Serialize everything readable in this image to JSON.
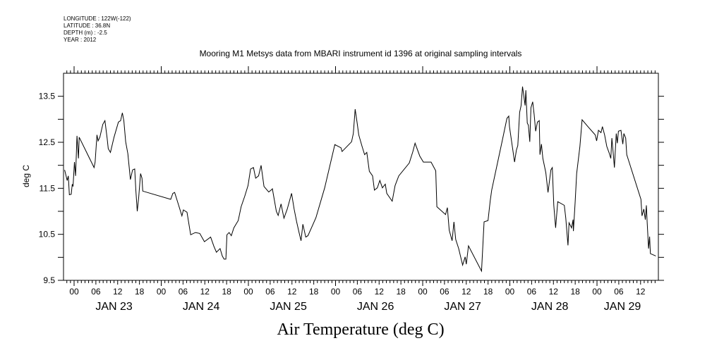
{
  "header": {
    "longitude": "LONGITUDE : 122W(-122)",
    "latitude": "LATITUDE : 36.8N",
    "depth": "DEPTH (m) : -2.5",
    "year": "YEAR : 2012"
  },
  "chart_data": {
    "type": "line",
    "title": "Mooring M1 Metsys data from MBARI instrument id 1396 at original sampling intervals",
    "xlabel": "Air Temperature (deg C)",
    "ylabel": "deg C",
    "x_units": "hours since 2012-01-23 00:00",
    "xlim": [
      -3,
      161
    ],
    "ylim": [
      9.5,
      14.0
    ],
    "grid": false,
    "line_color": "#000000",
    "y_ticks": [
      9.5,
      10.0,
      10.5,
      11.0,
      11.5,
      12.0,
      12.5,
      13.0,
      13.5
    ],
    "y_tick_labels": [
      {
        "value": 9.5,
        "label": "9.5"
      },
      {
        "value": 10.5,
        "label": "10.5"
      },
      {
        "value": 11.5,
        "label": "11.5"
      },
      {
        "value": 12.5,
        "label": "12.5"
      },
      {
        "value": 13.5,
        "label": "13.5"
      }
    ],
    "x_tick_labels": [
      {
        "hour": 0,
        "label": "00"
      },
      {
        "hour": 6,
        "label": "06"
      },
      {
        "hour": 12,
        "label": "12"
      },
      {
        "hour": 18,
        "label": "18"
      },
      {
        "hour": 24,
        "label": "00"
      },
      {
        "hour": 30,
        "label": "06"
      },
      {
        "hour": 36,
        "label": "12"
      },
      {
        "hour": 42,
        "label": "18"
      },
      {
        "hour": 48,
        "label": "00"
      },
      {
        "hour": 54,
        "label": "06"
      },
      {
        "hour": 60,
        "label": "12"
      },
      {
        "hour": 66,
        "label": "18"
      },
      {
        "hour": 72,
        "label": "00"
      },
      {
        "hour": 78,
        "label": "06"
      },
      {
        "hour": 84,
        "label": "12"
      },
      {
        "hour": 90,
        "label": "18"
      },
      {
        "hour": 96,
        "label": "00"
      },
      {
        "hour": 102,
        "label": "06"
      },
      {
        "hour": 108,
        "label": "12"
      },
      {
        "hour": 114,
        "label": "18"
      },
      {
        "hour": 120,
        "label": "00"
      },
      {
        "hour": 126,
        "label": "06"
      },
      {
        "hour": 132,
        "label": "12"
      },
      {
        "hour": 138,
        "label": "18"
      },
      {
        "hour": 144,
        "label": "00"
      },
      {
        "hour": 150,
        "label": "06"
      },
      {
        "hour": 156,
        "label": "12"
      }
    ],
    "date_labels": [
      {
        "hour": 11,
        "label": "JAN 23"
      },
      {
        "hour": 35,
        "label": "JAN 24"
      },
      {
        "hour": 59,
        "label": "JAN 25"
      },
      {
        "hour": 83,
        "label": "JAN 26"
      },
      {
        "hour": 107,
        "label": "JAN 27"
      },
      {
        "hour": 131,
        "label": "JAN 28"
      },
      {
        "hour": 151,
        "label": "JAN 29"
      }
    ],
    "x": [
      -2.6,
      -1.9,
      -1.6,
      -1.3,
      -0.8,
      -0.5,
      -0.3,
      0.1,
      0.4,
      0.8,
      1.2,
      1.4,
      5.5,
      5.8,
      6.3,
      6.6,
      7.1,
      7.9,
      8.5,
      9.1,
      9.4,
      10.0,
      11.0,
      12.2,
      12.8,
      13.3,
      13.7,
      14.2,
      14.8,
      15.5,
      16.1,
      16.7,
      17.0,
      17.4,
      17.8,
      18.3,
      18.7,
      18.9,
      26.6,
      27.2,
      27.7,
      28.8,
      29.7,
      30.1,
      31.1,
      32.1,
      33.4,
      34.6,
      35.9,
      37.6,
      38.5,
      39.2,
      40.2,
      40.8,
      41.3,
      41.8,
      42.1,
      42.7,
      43.3,
      44.0,
      45.2,
      46.0,
      47.0,
      47.9,
      48.6,
      49.4,
      50.0,
      50.8,
      51.5,
      52.3,
      53.6,
      54.4,
      54.6,
      55.7,
      56.2,
      57.0,
      57.8,
      58.7,
      59.9,
      60.6,
      61.3,
      62.0,
      62.5,
      63.0,
      63.8,
      64.4,
      65.7,
      66.6,
      69.0,
      71.8,
      73.5,
      73.8,
      76.4,
      76.9,
      77.4,
      78.0,
      78.4,
      79.3,
      80.0,
      80.6,
      81.3,
      82.2,
      82.7,
      83.5,
      84.2,
      84.9,
      85.7,
      86.1,
      87.6,
      88.4,
      89.4,
      92.3,
      93.3,
      93.9,
      95.2,
      96.2,
      98.3,
      99.6,
      99.9,
      102.3,
      102.8,
      103.3,
      104.1,
      104.6,
      105.1,
      105.9,
      107.0,
      107.7,
      108.0,
      108.6,
      112.2,
      112.9,
      114.0,
      114.6,
      115.0,
      117.9,
      119.2,
      119.7,
      119.9,
      121.3,
      121.8,
      122.2,
      122.7,
      123.1,
      123.5,
      123.8,
      124.2,
      124.4,
      124.8,
      125.1,
      125.5,
      125.8,
      126.3,
      126.7,
      127.1,
      127.6,
      128.1,
      128.3,
      128.7,
      129.1,
      129.9,
      130.5,
      131.3,
      131.7,
      132.1,
      132.6,
      133.2,
      135.0,
      135.4,
      136.0,
      136.3,
      137.0,
      137.4,
      137.5,
      138.0,
      138.4,
      139.3,
      139.9,
      141.5,
      143.5,
      143.9,
      144.4,
      145.1,
      145.5,
      146.1,
      146.7,
      147.3,
      147.8,
      148.1,
      148.5,
      148.8,
      149.3,
      149.6,
      149.9,
      150.6,
      151.1,
      151.4,
      151.9,
      152.2,
      156.1,
      156.4,
      156.9,
      157.3,
      157.6,
      157.8,
      158.2,
      158.5,
      158.7,
      160.2
    ],
    "values": [
      11.9,
      11.67,
      11.77,
      11.36,
      11.37,
      11.59,
      11.54,
      12.07,
      11.77,
      12.64,
      12.15,
      12.61,
      11.95,
      12.07,
      12.66,
      12.53,
      12.61,
      12.89,
      12.97,
      12.59,
      12.36,
      12.28,
      12.61,
      12.94,
      12.97,
      13.14,
      12.97,
      12.51,
      12.25,
      11.69,
      11.9,
      11.92,
      11.46,
      11.0,
      11.31,
      11.82,
      11.72,
      11.44,
      11.26,
      11.39,
      11.41,
      11.13,
      10.9,
      11.03,
      10.98,
      10.49,
      10.54,
      10.52,
      10.34,
      10.44,
      10.24,
      10.11,
      10.19,
      10.03,
      9.96,
      9.96,
      10.49,
      10.54,
      10.47,
      10.64,
      10.8,
      11.1,
      11.33,
      11.56,
      11.92,
      11.95,
      11.72,
      11.77,
      12.0,
      11.54,
      11.42,
      11.47,
      11.49,
      11.0,
      10.91,
      11.16,
      10.85,
      11.05,
      11.39,
      11.05,
      10.77,
      10.52,
      10.36,
      10.72,
      10.44,
      10.47,
      10.7,
      10.86,
      11.51,
      12.45,
      12.38,
      12.3,
      12.51,
      12.69,
      13.22,
      12.89,
      12.66,
      12.41,
      12.23,
      12.28,
      11.87,
      11.77,
      11.46,
      11.51,
      11.67,
      11.51,
      11.59,
      11.39,
      11.22,
      11.56,
      11.77,
      12.05,
      12.3,
      12.48,
      12.2,
      12.07,
      12.07,
      11.88,
      11.1,
      10.93,
      11.08,
      10.59,
      10.36,
      10.77,
      10.39,
      10.19,
      9.83,
      10.01,
      9.85,
      10.25,
      9.7,
      10.77,
      10.8,
      11.23,
      11.46,
      12.53,
      13.02,
      13.07,
      12.84,
      12.07,
      12.33,
      12.43,
      13.15,
      13.3,
      13.71,
      13.53,
      13.3,
      13.63,
      12.92,
      12.87,
      12.51,
      13.25,
      13.38,
      13.1,
      12.74,
      12.94,
      12.97,
      12.23,
      12.46,
      12.15,
      11.84,
      11.41,
      11.9,
      11.95,
      11.13,
      10.64,
      11.21,
      11.13,
      10.85,
      10.26,
      10.75,
      10.64,
      10.82,
      10.57,
      11.21,
      11.82,
      12.41,
      12.99,
      12.84,
      12.66,
      12.53,
      12.76,
      12.71,
      12.84,
      12.66,
      12.41,
      12.28,
      12.15,
      12.59,
      12.23,
      11.95,
      12.69,
      12.48,
      12.74,
      12.76,
      12.46,
      12.69,
      12.59,
      12.23,
      11.26,
      10.9,
      11.05,
      10.82,
      11.13,
      10.8,
      10.19,
      10.45,
      10.08,
      10.03
    ]
  }
}
